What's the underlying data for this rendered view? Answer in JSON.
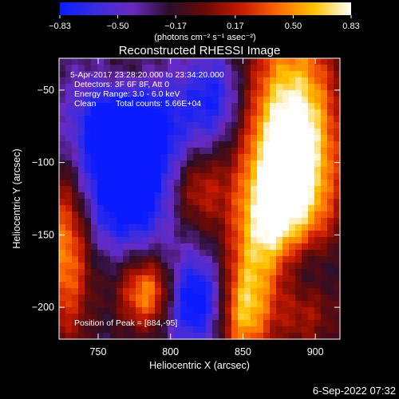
{
  "chart_data": {
    "type": "heatmap",
    "title": "Reconstructed RHESSI Image",
    "xlabel": "Heliocentric X (arcsec)",
    "ylabel": "Heliocentric Y (arcsec)",
    "xlim": [
      723,
      917
    ],
    "ylim": [
      -222,
      -28
    ],
    "x_ticks": [
      {
        "value": 750,
        "label": "750"
      },
      {
        "value": 800,
        "label": "800"
      },
      {
        "value": 850,
        "label": "850"
      },
      {
        "value": 900,
        "label": "900"
      }
    ],
    "y_ticks": [
      {
        "value": -50,
        "label": "−50"
      },
      {
        "value": -100,
        "label": "−100"
      },
      {
        "value": -150,
        "label": "−150"
      },
      {
        "value": -200,
        "label": "−200"
      }
    ],
    "colorbar": {
      "range": [
        -0.83,
        0.83
      ],
      "ticks": [
        {
          "value": -0.83,
          "label": "−0.83"
        },
        {
          "value": -0.5,
          "label": "−0.50"
        },
        {
          "value": -0.17,
          "label": "−0.17"
        },
        {
          "value": 0.17,
          "label": "0.17"
        },
        {
          "value": 0.5,
          "label": "0.50"
        },
        {
          "value": 0.83,
          "label": "0.83"
        }
      ],
      "unit_label": "(photons cm⁻² s⁻¹ asec⁻²)",
      "colormap": [
        "#0a1cff",
        "#3a2ce0",
        "#6a2ac0",
        "#2a0e2a",
        "#6a0a06",
        "#c81a00",
        "#ff6a00",
        "#ffc400",
        "#ffffff"
      ]
    },
    "annotations": {
      "time_range": "5-Apr-2017 23:28:20.000 to 23:34:20.000",
      "detectors": "Detectors: 3F 6F 8F, Att 0",
      "energy": "Energy Range: 3.0 - 6.0 keV",
      "method": "Clean",
      "counts": "Total counts: 5.66E+04",
      "peak": "Position of Peak = [884,-95]"
    },
    "peak": {
      "x": 884,
      "y": -95
    },
    "sources": [
      {
        "x": 884,
        "y": -95,
        "sx": 22,
        "sy": 60,
        "amp": 1.35
      },
      {
        "x": 862,
        "y": -150,
        "sx": 16,
        "sy": 35,
        "amp": 0.55
      },
      {
        "x": 850,
        "y": -205,
        "sx": 12,
        "sy": 25,
        "amp": 0.75
      },
      {
        "x": 785,
        "y": -190,
        "sx": 14,
        "sy": 18,
        "amp": 0.85
      },
      {
        "x": 818,
        "y": -118,
        "sx": 14,
        "sy": 20,
        "amp": 0.5
      },
      {
        "x": 728,
        "y": -160,
        "sx": 12,
        "sy": 45,
        "amp": 0.75
      },
      {
        "x": 770,
        "y": -40,
        "sx": 16,
        "sy": 14,
        "amp": 0.3
      },
      {
        "x": 895,
        "y": -200,
        "sx": 14,
        "sy": 18,
        "amp": 0.3
      }
    ],
    "troughs": [
      {
        "x": 770,
        "y": -80,
        "sx": 28,
        "sy": 30,
        "amp": 0.95
      },
      {
        "x": 770,
        "y": -130,
        "sx": 22,
        "sy": 25,
        "amp": 0.55
      },
      {
        "x": 815,
        "y": -195,
        "sx": 16,
        "sy": 22,
        "amp": 0.75
      },
      {
        "x": 890,
        "y": -175,
        "sx": 16,
        "sy": 20,
        "amp": 0.55
      },
      {
        "x": 830,
        "y": -55,
        "sx": 14,
        "sy": 22,
        "amp": 0.5
      }
    ],
    "offset": -0.25
  },
  "timestamp": "6-Sep-2022 07:32"
}
